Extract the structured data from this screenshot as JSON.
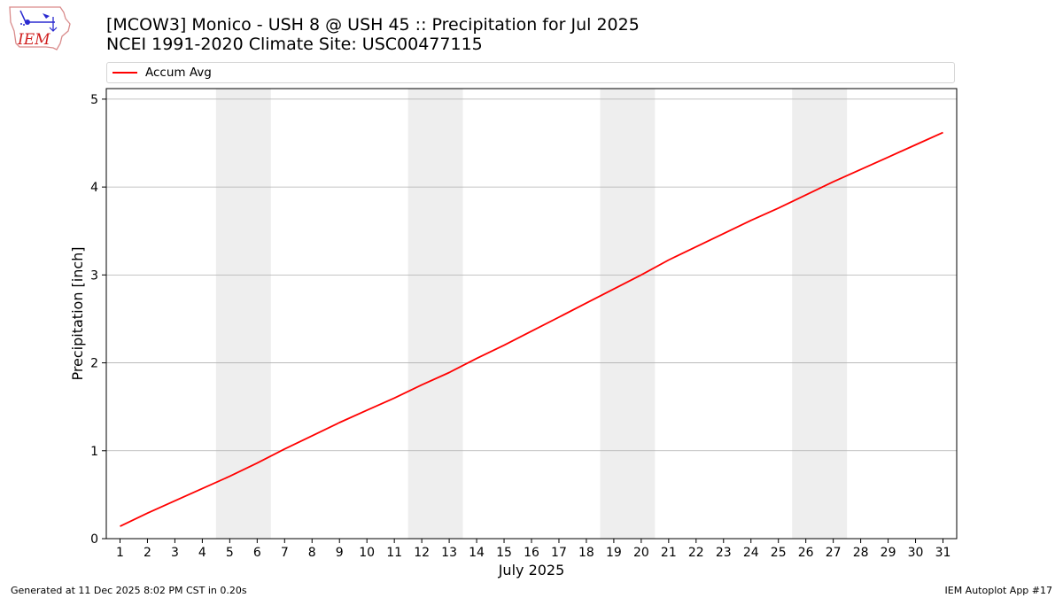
{
  "logo": {
    "text": "IEM",
    "icon": "iowa-state-outline-weather-station-icon"
  },
  "header": {
    "title_line1": "[MCOW3] Monico - USH 8 @ USH 45 :: Precipitation for Jul 2025",
    "title_line2": "NCEI 1991-2020 Climate Site: USC00477115"
  },
  "colors": {
    "series": "#ff0000",
    "weekend_band": "#eeeeee",
    "grid": "#b0b0b0"
  },
  "chart_data": {
    "type": "line",
    "title": "[MCOW3] Monico - USH 8 @ USH 45 :: Precipitation for Jul 2025",
    "subtitle": "NCEI 1991-2020 Climate Site: USC00477115",
    "xlabel": "July 2025",
    "ylabel": "Precipitation [inch]",
    "xlim": [
      0.5,
      31.5
    ],
    "ylim": [
      0,
      5.12
    ],
    "yticks": [
      0,
      1,
      2,
      3,
      4,
      5
    ],
    "grid": "horizontal",
    "legend_placement": "top",
    "weekend_bands": [
      [
        4.5,
        6.5
      ],
      [
        11.5,
        13.5
      ],
      [
        18.5,
        20.5
      ],
      [
        25.5,
        27.5
      ]
    ],
    "x": [
      1,
      2,
      3,
      4,
      5,
      6,
      7,
      8,
      9,
      10,
      11,
      12,
      13,
      14,
      15,
      16,
      17,
      18,
      19,
      20,
      21,
      22,
      23,
      24,
      25,
      26,
      27,
      28,
      29,
      30,
      31
    ],
    "xtick_labels": [
      "1",
      "2",
      "3",
      "4",
      "5",
      "6",
      "7",
      "8",
      "9",
      "10",
      "11",
      "12",
      "13",
      "14",
      "15",
      "16",
      "17",
      "18",
      "19",
      "20",
      "21",
      "22",
      "23",
      "24",
      "25",
      "26",
      "27",
      "28",
      "29",
      "30",
      "31"
    ],
    "series": [
      {
        "name": "Accum Avg",
        "color": "#ff0000",
        "values": [
          0.14,
          0.29,
          0.43,
          0.57,
          0.71,
          0.86,
          1.02,
          1.17,
          1.32,
          1.46,
          1.6,
          1.75,
          1.89,
          2.05,
          2.2,
          2.36,
          2.52,
          2.68,
          2.84,
          3.0,
          3.17,
          3.32,
          3.47,
          3.62,
          3.76,
          3.91,
          4.06,
          4.2,
          4.34,
          4.48,
          4.62
        ]
      }
    ]
  },
  "footer": {
    "generated": "Generated at 11 Dec 2025 8:02 PM CST in 0.20s",
    "app": "IEM Autoplot App #17"
  }
}
